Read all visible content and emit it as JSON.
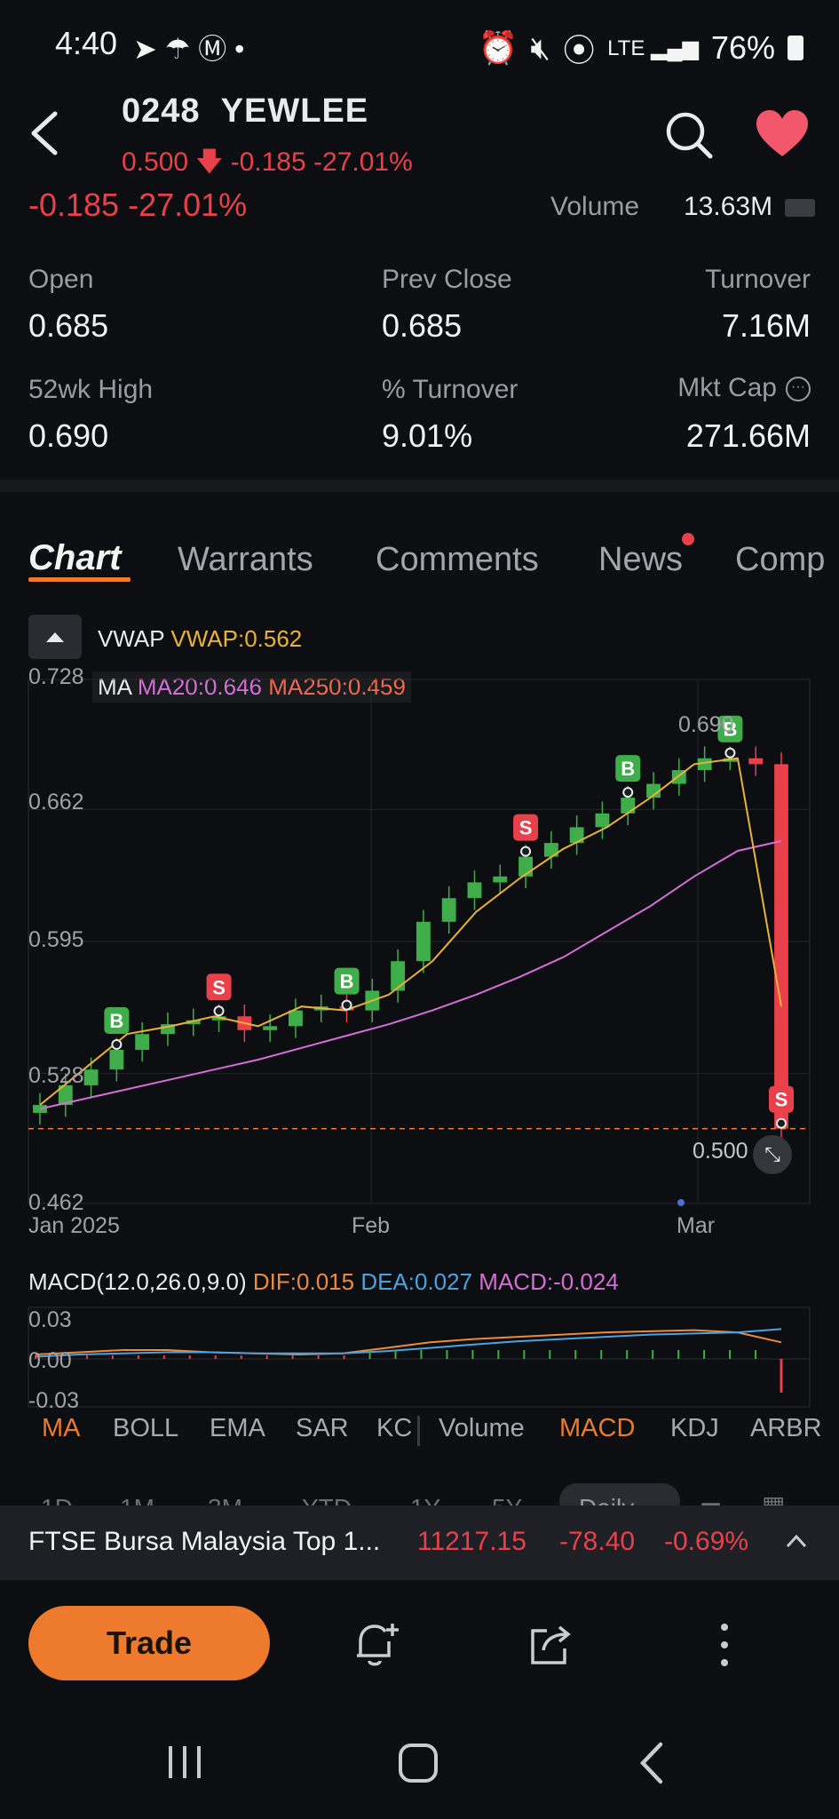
{
  "status_bar": {
    "time": "4:40",
    "battery": "76%"
  },
  "header": {
    "symbol": "0248",
    "name": "YEWLEE",
    "price": "0.500",
    "change": "-0.185",
    "change_pct": "-27.01%"
  },
  "partial_row": {
    "change": "-0.185 -27.01%",
    "volume_label": "Volume",
    "volume_value": "13.63M"
  },
  "stats": {
    "open_label": "Open",
    "open_value": "0.685",
    "prev_close_label": "Prev Close",
    "prev_close_value": "0.685",
    "turnover_label": "Turnover",
    "turnover_value": "7.16M",
    "high52_label": "52wk High",
    "high52_value": "0.690",
    "pct_turnover_label": "% Turnover",
    "pct_turnover_value": "9.01%",
    "mktcap_label": "Mkt Cap",
    "mktcap_value": "271.66M"
  },
  "tabs": [
    "Chart",
    "Warrants",
    "Comments",
    "News",
    "Comp"
  ],
  "overlay": {
    "vwap_label": "VWAP",
    "vwap_value": "VWAP:0.562",
    "ma_label": "MA",
    "ma20": "MA20:0.646",
    "ma250": "MA250:0.459",
    "peak_label": "0.690",
    "last_label": "0.500"
  },
  "chart_data": {
    "type": "line",
    "title": "",
    "y_ticks": [
      "0.728",
      "0.662",
      "0.595",
      "0.528",
      "0.462"
    ],
    "x_ticks": [
      "Jan 2025",
      "Feb",
      "Mar"
    ],
    "ylim": [
      0.462,
      0.728
    ],
    "series": [
      {
        "name": "MA20",
        "color": "#d46fd6",
        "values": [
          0.51,
          0.515,
          0.52,
          0.525,
          0.53,
          0.535,
          0.541,
          0.547,
          0.553,
          0.56,
          0.568,
          0.577,
          0.587,
          0.6,
          0.613,
          0.628,
          0.641,
          0.646
        ]
      },
      {
        "name": "VWAP",
        "color": "#e9b33a",
        "values": [
          0.512,
          0.53,
          0.548,
          0.552,
          0.557,
          0.552,
          0.562,
          0.56,
          0.568,
          0.585,
          0.61,
          0.627,
          0.642,
          0.653,
          0.668,
          0.685,
          0.688,
          0.562
        ]
      }
    ],
    "candles": [
      0.512,
      0.522,
      0.53,
      0.54,
      0.548,
      0.553,
      0.555,
      0.557,
      0.55,
      0.552,
      0.56,
      0.562,
      0.56,
      0.57,
      0.585,
      0.605,
      0.617,
      0.625,
      0.628,
      0.638,
      0.645,
      0.653,
      0.66,
      0.668,
      0.675,
      0.682,
      0.688,
      0.688,
      0.685,
      0.5
    ],
    "signals": [
      {
        "label": "B",
        "index": 3
      },
      {
        "label": "S",
        "index": 7
      },
      {
        "label": "B",
        "index": 12
      },
      {
        "label": "S",
        "index": 19
      },
      {
        "label": "B",
        "index": 23
      },
      {
        "label": "B",
        "index": 27
      },
      {
        "label": "S",
        "index": 29
      }
    ]
  },
  "macd": {
    "title": "MACD(12.0,26.0,9.0)",
    "dif": "DIF:0.015",
    "dea": "DEA:0.027",
    "macd": "MACD:-0.024",
    "y_ticks": [
      "0.03",
      "0.00",
      "-0.03"
    ]
  },
  "indicators": [
    "MA",
    "BOLL",
    "EMA",
    "SAR",
    "KC",
    "Volume",
    "MACD",
    "KDJ",
    "ARBR"
  ],
  "ranges": [
    "1D",
    "1M",
    "3M",
    "YTD",
    "1Y",
    "5Y",
    "Daily"
  ],
  "ticker": {
    "name": "FTSE Bursa Malaysia Top 1...",
    "value": "11217.15",
    "change": "-78.40",
    "pct": "-0.69%"
  },
  "actions": {
    "trade_label": "Trade"
  },
  "colors": {
    "accent": "#ee7a2e",
    "down": "#e8414b",
    "up": "#3fae4a",
    "heart": "#f2576b"
  }
}
